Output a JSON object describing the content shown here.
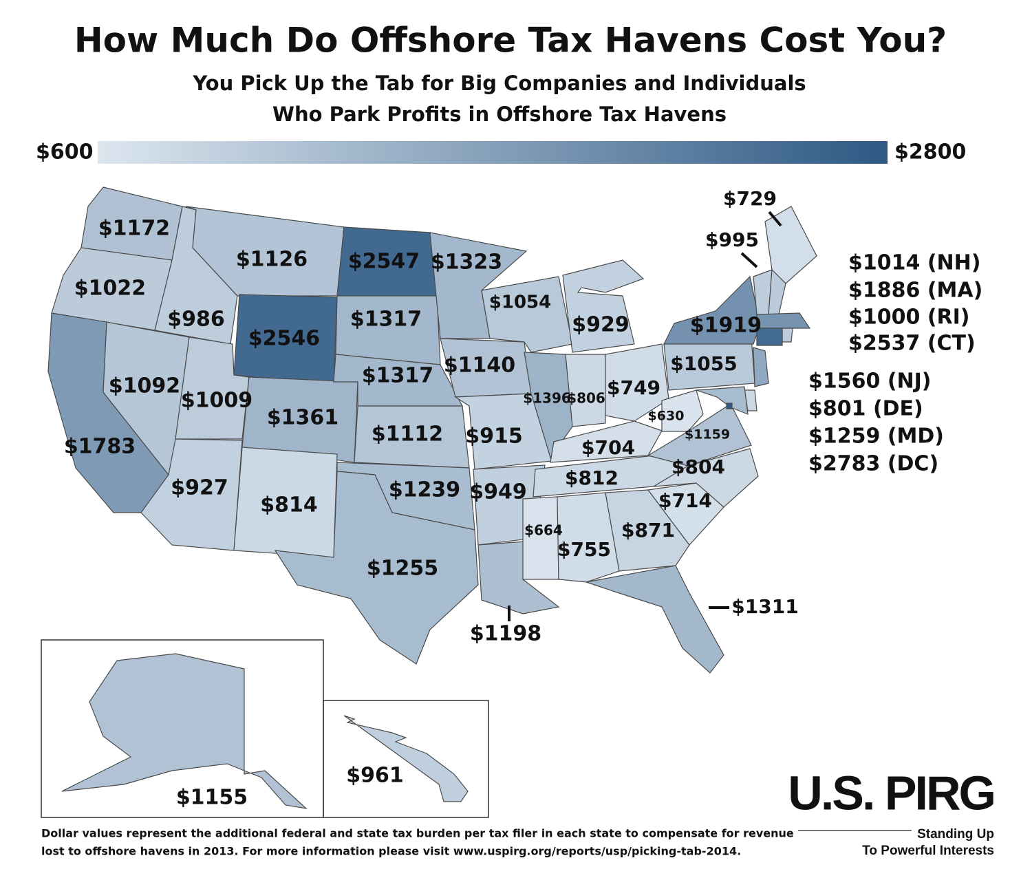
{
  "header": {
    "title": "How Much Do Offshore Tax Havens Cost You?",
    "subtitle_lines": [
      "You Pick Up the Tab for Big Companies and Individuals",
      "Who Park Profits in Offshore Tax Havens"
    ]
  },
  "legend": {
    "min": {
      "value": 600,
      "label": "$600"
    },
    "max": {
      "value": 2800,
      "label": "$2800"
    },
    "colors": [
      "#dce6ef",
      "#2e5984"
    ]
  },
  "states": [
    {
      "label": "$1172",
      "value": 1172
    },
    {
      "label": "$1022",
      "value": 1022
    },
    {
      "label": "$1783",
      "value": 1783
    },
    {
      "label": "$986",
      "value": 986
    },
    {
      "label": "$1092",
      "value": 1092
    },
    {
      "label": "$1126",
      "value": 1126
    },
    {
      "label": "$2546",
      "value": 2546
    },
    {
      "label": "$1009",
      "value": 1009
    },
    {
      "label": "$927",
      "value": 927
    },
    {
      "label": "$1361",
      "value": 1361
    },
    {
      "label": "$814",
      "value": 814
    },
    {
      "label": "$2547",
      "value": 2547
    },
    {
      "label": "$1317",
      "value": 1317
    },
    {
      "label": "$1317",
      "value": 1317
    },
    {
      "label": "$1112",
      "value": 1112
    },
    {
      "label": "$1239",
      "value": 1239
    },
    {
      "label": "$1255",
      "value": 1255
    },
    {
      "label": "$1323",
      "value": 1323
    },
    {
      "label": "$1140",
      "value": 1140
    },
    {
      "label": "$915",
      "value": 915
    },
    {
      "label": "$949",
      "value": 949
    },
    {
      "label": "$1198",
      "value": 1198
    },
    {
      "label": "$1054",
      "value": 1054
    },
    {
      "label": "$1396",
      "value": 1396
    },
    {
      "label": "$929",
      "value": 929
    },
    {
      "label": "$806",
      "value": 806
    },
    {
      "label": "$749",
      "value": 749
    },
    {
      "label": "$704",
      "value": 704
    },
    {
      "label": "$812",
      "value": 812
    },
    {
      "label": "$664",
      "value": 664
    },
    {
      "label": "$755",
      "value": 755
    },
    {
      "label": "$871",
      "value": 871
    },
    {
      "label": "$1311",
      "value": 1311
    },
    {
      "label": "$714",
      "value": 714
    },
    {
      "label": "$804",
      "value": 804
    },
    {
      "label": "$1159",
      "value": 1159
    },
    {
      "label": "$630",
      "value": 630
    },
    {
      "label": "$1055",
      "value": 1055
    },
    {
      "label": "$1919",
      "value": 1919
    },
    {
      "label": "$729",
      "value": 729
    },
    {
      "label": "$995",
      "value": 995
    },
    {
      "label": "$1014 (NH)",
      "value": 1014
    },
    {
      "label": "$1886 (MA)",
      "value": 1886
    },
    {
      "label": "$1000 (RI)",
      "value": 1000
    },
    {
      "label": "$2537 (CT)",
      "value": 2537
    },
    {
      "label": "$1560 (NJ)",
      "value": 1560
    },
    {
      "label": "$801 (DE)",
      "value": 801
    },
    {
      "label": "$1259 (MD)",
      "value": 1259
    },
    {
      "label": "$2783 (DC)",
      "value": 2783
    },
    {
      "label": "$1155",
      "value": 1155
    },
    {
      "label": "$961",
      "value": 961
    }
  ],
  "footnote": [
    "Dollar values represent the additional federal and state tax burden per tax filer in each state to compensate for revenue",
    "lost to offshore havens in 2013. For more information please visit www.uspirg.org/reports/usp/picking-tab-2014."
  ],
  "logo": {
    "name": "U.S. PIRG",
    "tagline_lines": [
      "Standing Up",
      "To Powerful Interests"
    ]
  }
}
